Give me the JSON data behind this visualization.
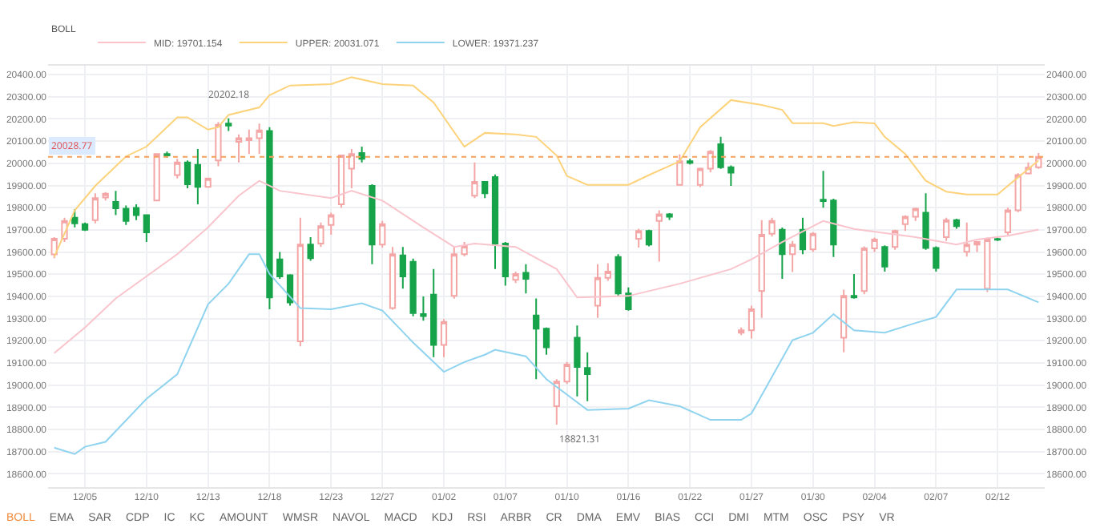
{
  "chart_data": {
    "type": "candlestick",
    "categories": [
      null,
      null,
      null,
      "12/05",
      null,
      null,
      null,
      null,
      null,
      "12/10",
      null,
      null,
      null,
      null,
      null,
      "12/13",
      null,
      null,
      null,
      null,
      null,
      "12/18",
      null,
      null,
      null,
      null,
      null,
      "12/23",
      null,
      null,
      null,
      null,
      "12/27",
      null,
      null,
      null,
      null,
      null,
      "01/02",
      null,
      null,
      null,
      null,
      null,
      "01/07",
      null,
      null,
      null,
      null,
      null,
      "01/10",
      null,
      null,
      null,
      null,
      null,
      "01/16",
      null,
      null,
      null,
      null,
      null,
      "01/22",
      null,
      null,
      null,
      null,
      null,
      "01/27",
      null,
      null,
      null,
      null,
      null,
      "01/30",
      null,
      null,
      null,
      null,
      null,
      "02/04",
      null,
      null,
      null,
      null,
      null,
      "02/07",
      null,
      null,
      null,
      null,
      null,
      "02/12",
      null,
      null,
      null,
      null
    ],
    "ohlc": [
      [
        19589,
        19667,
        19572,
        19660
      ],
      [
        19660,
        19755,
        19645,
        19740
      ],
      [
        19755,
        19793,
        19711,
        19729
      ],
      [
        19726,
        19733,
        19695,
        19700
      ],
      [
        19744,
        19865,
        19729,
        19843
      ],
      [
        19846,
        19870,
        19832,
        19863
      ],
      [
        19826,
        19876,
        19766,
        19797
      ],
      [
        19795,
        19810,
        19722,
        19740
      ],
      [
        19799,
        19815,
        19744,
        19766
      ],
      [
        19766,
        19770,
        19645,
        19689
      ],
      [
        19832,
        20045,
        19830,
        20042
      ],
      [
        20042,
        20053,
        20026,
        20035
      ],
      [
        19947,
        20020,
        19932,
        20004
      ],
      [
        20004,
        20013,
        19887,
        19905
      ],
      [
        19993,
        20064,
        19815,
        19894
      ],
      [
        19894,
        19932,
        19890,
        19932
      ],
      [
        20013,
        20185,
        19987,
        20174
      ],
      [
        20179,
        20202.18,
        20146,
        20170
      ],
      [
        20097,
        20130,
        20004,
        20113
      ],
      [
        20104,
        20152,
        20042,
        20113
      ],
      [
        20113,
        20179,
        20042,
        20148
      ],
      [
        20146,
        20163,
        19342,
        19395
      ],
      [
        19567,
        19600,
        19479,
        19490
      ],
      [
        19495,
        19500,
        19358,
        19373
      ],
      [
        19197,
        19755,
        19175,
        19634
      ],
      [
        19634,
        19667,
        19560,
        19572
      ],
      [
        19638,
        19733,
        19623,
        19717
      ],
      [
        19722,
        19777,
        19678,
        19766
      ],
      [
        19815,
        20035,
        19800,
        20035
      ],
      [
        19976,
        20064,
        19887,
        20042
      ],
      [
        20046,
        20075,
        20004,
        20020
      ],
      [
        19898,
        19905,
        19545,
        19634
      ],
      [
        19634,
        19740,
        19620,
        19726
      ],
      [
        19347,
        19623,
        19340,
        19590
      ],
      [
        19585,
        19623,
        19435,
        19490
      ],
      [
        19556,
        19570,
        19310,
        19325
      ],
      [
        19320,
        19400,
        19290,
        19311
      ],
      [
        19408,
        19523,
        19126,
        19181
      ],
      [
        19181,
        19298,
        19126,
        19285
      ],
      [
        19402,
        19623,
        19390,
        19590
      ],
      [
        19590,
        19645,
        19580,
        19627
      ],
      [
        19854,
        20004,
        19843,
        19916
      ],
      [
        19916,
        19916,
        19843,
        19865
      ],
      [
        19938,
        19950,
        19523,
        19638
      ],
      [
        19638,
        19645,
        19448,
        19490
      ],
      [
        19475,
        19512,
        19460,
        19501
      ],
      [
        19506,
        19545,
        19413,
        19479
      ],
      [
        19314,
        19391,
        19027,
        19254
      ],
      [
        19254,
        19260,
        19137,
        19170
      ],
      [
        18905,
        19027,
        18821.31,
        19016
      ],
      [
        19016,
        19104,
        19005,
        19093
      ],
      [
        19214,
        19269,
        18949,
        19082
      ],
      [
        19077,
        19148,
        18927,
        19049
      ],
      [
        19358,
        19545,
        19303,
        19484
      ],
      [
        19484,
        19550,
        19470,
        19512
      ],
      [
        19578,
        19590,
        19400,
        19413
      ],
      [
        19413,
        19440,
        19336,
        19342
      ],
      [
        19660,
        19705,
        19620,
        19695
      ],
      [
        19695,
        19700,
        19625,
        19634
      ],
      [
        19740,
        19788,
        19557,
        19770
      ],
      [
        19770,
        19775,
        19745,
        19759
      ],
      [
        19903,
        20040,
        19900,
        20009
      ],
      [
        20009,
        20020,
        19995,
        20002
      ],
      [
        19903,
        19980,
        19893,
        19976
      ],
      [
        19976,
        20060,
        19960,
        20053
      ],
      [
        20086,
        20119,
        19975,
        19982
      ],
      [
        19982,
        19990,
        19898,
        19958
      ],
      [
        19236,
        19260,
        19225,
        19247
      ],
      [
        19247,
        19358,
        19210,
        19342
      ],
      [
        19424,
        19744,
        19303,
        19678
      ],
      [
        19682,
        19755,
        19670,
        19740
      ],
      [
        19700,
        19710,
        19479,
        19590
      ],
      [
        19590,
        19650,
        19510,
        19634
      ],
      [
        19700,
        19755,
        19590,
        19612
      ],
      [
        19612,
        19690,
        19600,
        19682
      ],
      [
        19836,
        19966,
        19800,
        19830
      ],
      [
        19832,
        19840,
        19578,
        19634
      ],
      [
        19214,
        19430,
        19148,
        19402
      ],
      [
        19402,
        19501,
        19390,
        19395
      ],
      [
        19424,
        19625,
        19410,
        19616
      ],
      [
        19616,
        19665,
        19600,
        19656
      ],
      [
        19623,
        19630,
        19512,
        19534
      ],
      [
        19623,
        19700,
        19610,
        19695
      ],
      [
        19726,
        19765,
        19695,
        19759
      ],
      [
        19759,
        19800,
        19740,
        19795
      ],
      [
        19777,
        19865,
        19610,
        19618
      ],
      [
        19618,
        19625,
        19512,
        19528
      ],
      [
        19667,
        19755,
        19650,
        19744
      ],
      [
        19744,
        19750,
        19705,
        19717
      ],
      [
        19601,
        19733,
        19579,
        19634
      ],
      [
        19634,
        19650,
        19600,
        19645
      ],
      [
        19435,
        19665,
        19420,
        19656
      ],
      [
        19659,
        19665,
        19650,
        19655
      ],
      [
        19689,
        19800,
        19678,
        19788
      ],
      [
        19788,
        19955,
        19780,
        19947
      ],
      [
        19954,
        20004,
        19950,
        19980
      ],
      [
        19982,
        20046,
        19975,
        20028.77
      ]
    ],
    "colors": [
      "#f4a6a6",
      "#f4a6a6",
      "#16a34a",
      "#16a34a",
      "#f4a6a6",
      "#f4a6a6",
      "#16a34a",
      "#16a34a",
      "#16a34a",
      "#16a34a",
      "#f4a6a6",
      "#16a34a",
      "#f4a6a6",
      "#16a34a",
      "#16a34a",
      "#f4a6a6",
      "#f4a6a6",
      "#16a34a",
      "#f4a6a6",
      "#f4a6a6",
      "#f4a6a6",
      "#16a34a",
      "#16a34a",
      "#16a34a",
      "#f4a6a6",
      "#16a34a",
      "#f4a6a6",
      "#f4a6a6",
      "#f4a6a6",
      "#f4a6a6",
      "#16a34a",
      "#16a34a",
      "#f4a6a6",
      "#f4a6a6",
      "#16a34a",
      "#16a34a",
      "#16a34a",
      "#16a34a",
      "#f4a6a6",
      "#f4a6a6",
      "#f4a6a6",
      "#f4a6a6",
      "#16a34a",
      "#16a34a",
      "#16a34a",
      "#f4a6a6",
      "#16a34a",
      "#16a34a",
      "#16a34a",
      "#f4a6a6",
      "#f4a6a6",
      "#16a34a",
      "#16a34a",
      "#f4a6a6",
      "#f4a6a6",
      "#16a34a",
      "#16a34a",
      "#f4a6a6",
      "#16a34a",
      "#f4a6a6",
      "#16a34a",
      "#f4a6a6",
      "#16a34a",
      "#f4a6a6",
      "#f4a6a6",
      "#16a34a",
      "#16a34a",
      "#f4a6a6",
      "#f4a6a6",
      "#f4a6a6",
      "#f4a6a6",
      "#16a34a",
      "#f4a6a6",
      "#16a34a",
      "#f4a6a6",
      "#16a34a",
      "#16a34a",
      "#f4a6a6",
      "#16a34a",
      "#f4a6a6",
      "#f4a6a6",
      "#16a34a",
      "#f4a6a6",
      "#f4a6a6",
      "#f4a6a6",
      "#16a34a",
      "#16a34a",
      "#f4a6a6",
      "#16a34a",
      "#f4a6a6",
      "#f4a6a6",
      "#f4a6a6",
      "#16a34a",
      "#f4a6a6",
      "#f4a6a6",
      "#f4a6a6",
      "#f4a6a6"
    ],
    "series": [
      {
        "name": "MID: 19701.154",
        "type": "line",
        "color": "#f9c4cc",
        "values": [
          19144,
          null,
          null,
          19260,
          null,
          null,
          19391,
          null,
          null,
          null,
          null,
          null,
          19590,
          null,
          null,
          19711,
          null,
          null,
          19854,
          null,
          19921,
          null,
          19876,
          null,
          null,
          null,
          null,
          19843,
          null,
          19876,
          null,
          null,
          19832,
          null,
          null,
          null,
          19711,
          null,
          null,
          19623,
          null,
          19638,
          null,
          null,
          null,
          19623,
          null,
          null,
          null,
          19523,
          null,
          19395,
          null,
          null,
          null,
          null,
          19402,
          null,
          null,
          null,
          null,
          19457,
          null,
          null,
          null,
          null,
          19523,
          null,
          19567,
          null,
          null,
          19645,
          null,
          null,
          null,
          19740,
          null,
          null,
          19704,
          null,
          null,
          null,
          null,
          null,
          19667,
          null,
          null,
          null,
          19634,
          null,
          19656,
          null,
          null,
          19673,
          null,
          null,
          19701
        ]
      },
      {
        "name": "UPPER: 20031.071",
        "type": "line",
        "color": "#fcd27a",
        "values": [
          19578,
          null,
          19788,
          null,
          19898,
          null,
          null,
          20031,
          null,
          20075,
          null,
          null,
          20207,
          20207,
          null,
          20152,
          20163,
          20218,
          null,
          null,
          20252,
          20307,
          null,
          20351,
          null,
          null,
          null,
          20357,
          null,
          20388,
          null,
          null,
          20357,
          null,
          null,
          20351,
          null,
          20274,
          null,
          20141,
          20075,
          null,
          20137,
          null,
          null,
          20130,
          null,
          20119,
          null,
          20035,
          19943,
          null,
          19903,
          null,
          null,
          null,
          19903,
          null,
          19947,
          null,
          null,
          20009,
          null,
          20163,
          null,
          null,
          20285,
          null,
          null,
          20263,
          null,
          20241,
          20181,
          null,
          null,
          20181,
          20168,
          null,
          20185,
          null,
          20180,
          20119,
          null,
          20042,
          null,
          19921,
          null,
          19872,
          null,
          19859,
          null,
          null,
          19859,
          19898,
          null,
          null,
          20013
        ]
      },
      {
        "name": "LOWER: 19371.237",
        "type": "line",
        "color": "#8fd3ef",
        "values": [
          18718,
          null,
          18689,
          18722,
          null,
          18744,
          null,
          null,
          null,
          18938,
          null,
          null,
          19049,
          null,
          null,
          19364,
          null,
          19457,
          null,
          19590,
          19590,
          19501,
          null,
          null,
          19347,
          null,
          null,
          19342,
          null,
          null,
          19369,
          null,
          19336,
          null,
          null,
          19192,
          null,
          null,
          19060,
          null,
          19104,
          null,
          19137,
          19159,
          null,
          null,
          19130,
          null,
          19027,
          null,
          null,
          null,
          18888,
          null,
          null,
          null,
          18894,
          null,
          18932,
          null,
          null,
          18905,
          null,
          null,
          18843,
          null,
          null,
          18843,
          18872,
          null,
          null,
          null,
          19203,
          null,
          19236,
          null,
          19320,
          null,
          19247,
          null,
          null,
          19236,
          null,
          null,
          19280,
          null,
          19307,
          null,
          19431,
          null,
          null,
          null,
          null,
          19431,
          null,
          null,
          19373
        ]
      }
    ],
    "legend": "top left",
    "legend_title": "BOLL",
    "grid": true,
    "ylim": [
      18540,
      20440
    ],
    "yticks": [
      {
        "value": 18600,
        "label": "18600.00"
      },
      {
        "value": 18700,
        "label": "18700.00"
      },
      {
        "value": 18800,
        "label": "18800.00"
      },
      {
        "value": 18900,
        "label": "18900.00"
      },
      {
        "value": 19000,
        "label": "19000.00"
      },
      {
        "value": 19100,
        "label": "19100.00"
      },
      {
        "value": 19200,
        "label": "19200.00"
      },
      {
        "value": 19300,
        "label": "19300.00"
      },
      {
        "value": 19400,
        "label": "19400.00"
      },
      {
        "value": 19500,
        "label": "19500.00"
      },
      {
        "value": 19600,
        "label": "19600.00"
      },
      {
        "value": 19700,
        "label": "19700.00"
      },
      {
        "value": 19800,
        "label": "19800.00"
      },
      {
        "value": 19900,
        "label": "19900.00"
      },
      {
        "value": 20000,
        "label": "20000.00"
      },
      {
        "value": 20100,
        "label": "20100.00"
      },
      {
        "value": 20200,
        "label": "20200.00"
      },
      {
        "value": 20300,
        "label": "20300.00"
      },
      {
        "value": 20400,
        "label": "20400.00"
      }
    ],
    "y2lim": [
      18540,
      20440
    ],
    "y2ticks": [
      {
        "value": 18600,
        "label": "18600.00"
      },
      {
        "value": 18700,
        "label": "18700.00"
      },
      {
        "value": 18800,
        "label": "18800.00"
      },
      {
        "value": 18900,
        "label": "18900.00"
      },
      {
        "value": 19000,
        "label": "19000.00"
      },
      {
        "value": 19100,
        "label": "19100.00"
      },
      {
        "value": 19200,
        "label": "19200.00"
      },
      {
        "value": 19300,
        "label": "19300.00"
      },
      {
        "value": 19400,
        "label": "19400.00"
      },
      {
        "value": 19500,
        "label": "19500.00"
      },
      {
        "value": 19600,
        "label": "19600.00"
      },
      {
        "value": 19700,
        "label": "19700.00"
      },
      {
        "value": 19800,
        "label": "19800.00"
      },
      {
        "value": 19900,
        "label": "19900.00"
      },
      {
        "value": 20000,
        "label": "20000.00"
      },
      {
        "value": 20100,
        "label": "20100.00"
      },
      {
        "value": 20200,
        "label": "20200.00"
      },
      {
        "value": 20300,
        "label": "20300.00"
      },
      {
        "value": 20400,
        "label": "20400.00"
      }
    ],
    "ref_lines": [
      {
        "axis": "y",
        "value": 20028.77,
        "label": "20028.77",
        "color": "#f5a05a",
        "line_style": "dotted"
      }
    ],
    "annotations": [
      "20202.18",
      "18821.31",
      "BOLL",
      "EMA",
      "SAR",
      "CDP",
      "IC",
      "KC",
      "AMOUNT",
      "WMSR",
      "NAVOL",
      "MACD",
      "KDJ",
      "RSI",
      "ARBR",
      "CR",
      "DMA",
      "EMV",
      "BIAS",
      "CCI",
      "DMI",
      "MTM",
      "OSC",
      "PSY",
      "VR"
    ]
  }
}
